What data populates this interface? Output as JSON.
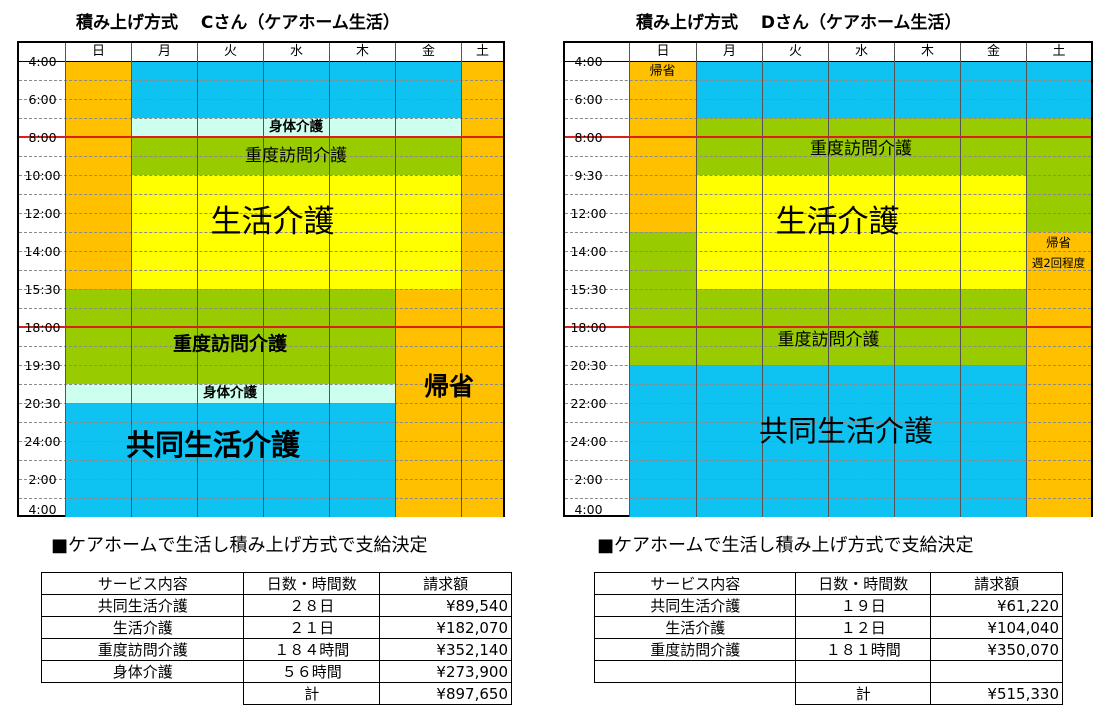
{
  "left": {
    "title": "積み上げ方式　 Cさん（ケアホーム生活）",
    "days": [
      "日",
      "月",
      "火",
      "水",
      "木",
      "金",
      "土"
    ],
    "times": [
      "4:00",
      "6:00",
      "8:00",
      "10:00",
      "12:00",
      "14:00",
      "15:30",
      "18:00",
      "19:30",
      "20:30",
      "24:00",
      "2:00",
      "4:00"
    ],
    "labels": {
      "shintai_top": "身体介護",
      "judo_top": "重度訪問介護",
      "seikatsu": "生活介護",
      "judo_bottom": "重度訪問介護",
      "shintai_bottom": "身体介護",
      "kisei": "帰省",
      "kyodo": "共同生活介護"
    },
    "section_heading": "■ケアホームで生活し積み上げ方式で支給決定",
    "table": {
      "headers": [
        "サービス内容",
        "日数・時間数",
        "請求額"
      ],
      "rows": [
        [
          "共同生活介護",
          "２８日",
          "¥89,540"
        ],
        [
          "生活介護",
          "２１日",
          "¥182,070"
        ],
        [
          "重度訪問介護",
          "１８４時間",
          "¥352,140"
        ],
        [
          "身体介護",
          "５６時間",
          "¥273,900"
        ]
      ],
      "total_label": "計",
      "total_value": "¥897,650"
    }
  },
  "right": {
    "title": "積み上げ方式　 Dさん（ケアホーム生活）",
    "days": [
      "日",
      "月",
      "火",
      "水",
      "木",
      "金",
      "土"
    ],
    "times": [
      "4:00",
      "6:00",
      "8:00",
      "9:30",
      "12:00",
      "14:00",
      "15:30",
      "18:00",
      "20:30",
      "22:00",
      "24:00",
      "2:00",
      "4:00"
    ],
    "labels": {
      "kisei_sun": "帰省",
      "judo_top": "重度訪問介護",
      "seikatsu": "生活介護",
      "kisei_sat": "帰省",
      "kisei_sat_note": "週2回程度",
      "judo_bottom": "重度訪問介護",
      "kyodo": "共同生活介護"
    },
    "section_heading": "■ケアホームで生活し積み上げ方式で支給決定",
    "table": {
      "headers": [
        "サービス内容",
        "日数・時間数",
        "請求額"
      ],
      "rows": [
        [
          "共同生活介護",
          "１９日",
          "¥61,220"
        ],
        [
          "生活介護",
          "１２日",
          "¥104,040"
        ],
        [
          "重度訪問介護",
          "１８１時間",
          "¥350,070"
        ],
        [
          "",
          "",
          ""
        ]
      ],
      "total_label": "計",
      "total_value": "¥515,330"
    }
  },
  "colors": {
    "blue": "#0ec2f2",
    "orange": "#ffc000",
    "green": "#99cc00",
    "yellow": "#ffff00",
    "lightcyan": "#ccffee",
    "red": "#d8201c"
  }
}
